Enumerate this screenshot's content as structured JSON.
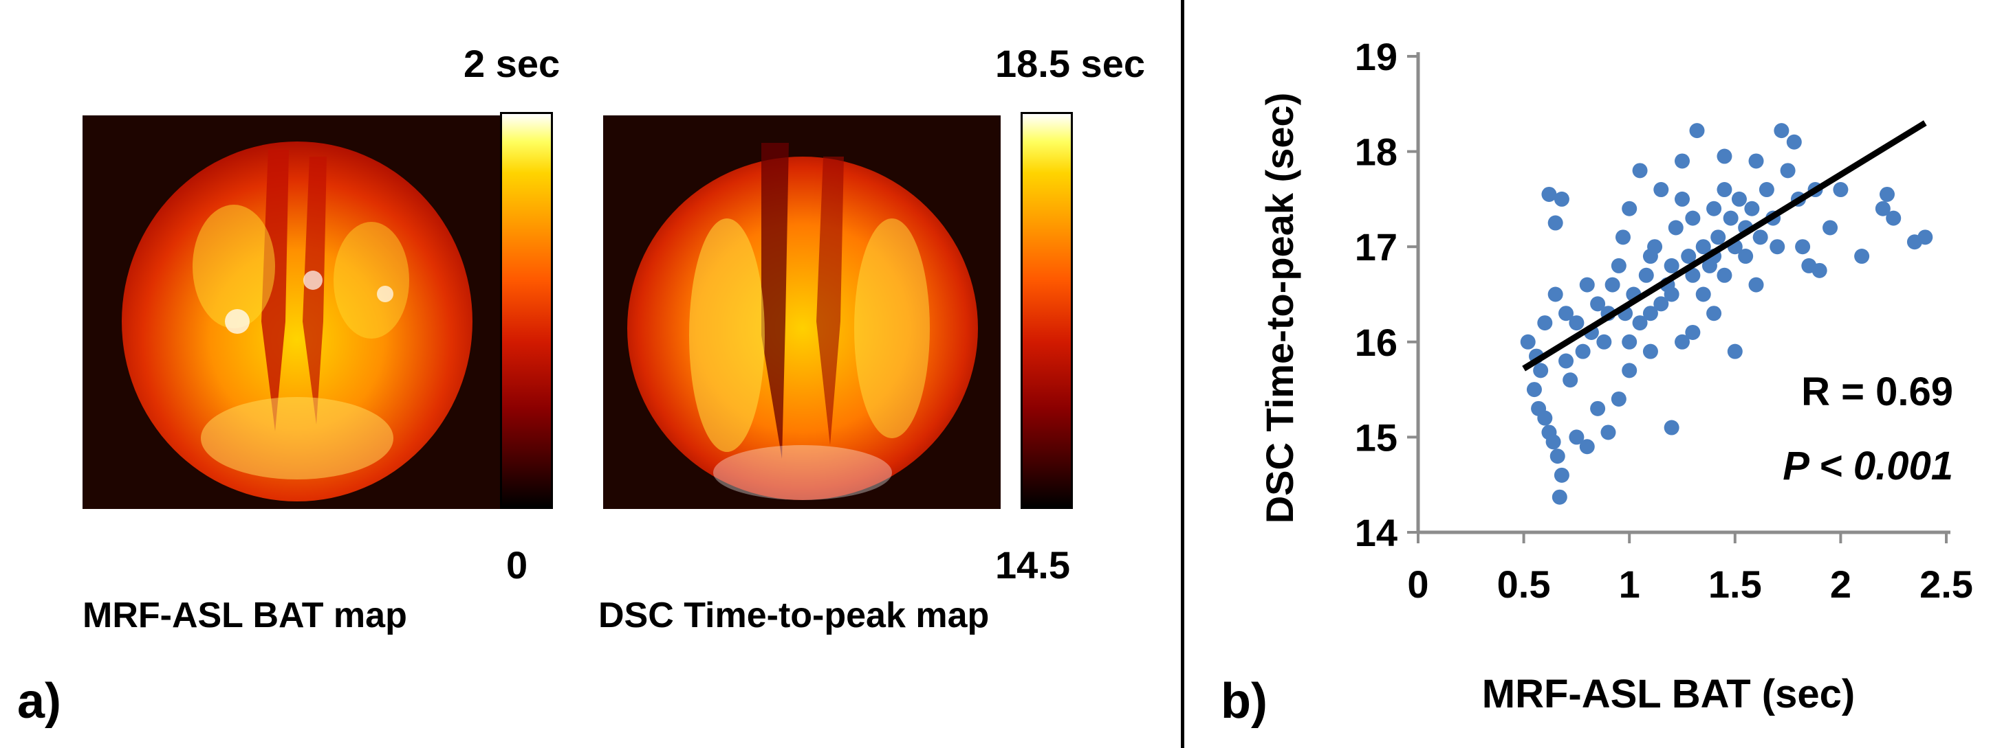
{
  "panel_a": {
    "label": "a)",
    "map1": {
      "caption": "MRF-ASL BAT map",
      "cbar_max": "2 sec",
      "cbar_min": "0"
    },
    "map2": {
      "caption": "DSC Time-to-peak map",
      "cbar_max": "18.5 sec",
      "cbar_min": "14.5"
    }
  },
  "panel_b": {
    "label": "b)",
    "stat_r": "R = 0.69",
    "stat_p": "P < 0.001"
  },
  "chart_data": {
    "type": "scatter",
    "title": "",
    "xlabel": "MRF-ASL BAT (sec)",
    "ylabel": "DSC Time-to-peak (sec)",
    "xlim": [
      0,
      2.5
    ],
    "ylim": [
      14,
      19
    ],
    "x_ticks": [
      "0",
      "0.5",
      "1",
      "1.5",
      "2",
      "2.5"
    ],
    "y_ticks": [
      "14",
      "15",
      "16",
      "17",
      "18",
      "19"
    ],
    "grid": false,
    "point_color": "#4a7fc1",
    "line_color": "#000000",
    "series": [
      {
        "points": [
          [
            0.62,
            17.55
          ],
          [
            0.68,
            17.5
          ],
          [
            0.65,
            17.25
          ],
          [
            0.52,
            16.0
          ],
          [
            0.56,
            15.85
          ],
          [
            0.58,
            15.7
          ],
          [
            0.55,
            15.5
          ],
          [
            0.57,
            15.3
          ],
          [
            0.6,
            15.2
          ],
          [
            0.62,
            15.05
          ],
          [
            0.64,
            14.95
          ],
          [
            0.66,
            14.8
          ],
          [
            0.68,
            14.6
          ],
          [
            0.67,
            14.37
          ],
          [
            0.75,
            15.0
          ],
          [
            0.8,
            14.9
          ],
          [
            0.9,
            15.05
          ],
          [
            0.72,
            15.6
          ],
          [
            0.78,
            15.9
          ],
          [
            0.82,
            16.1
          ],
          [
            0.85,
            16.4
          ],
          [
            0.88,
            16.0
          ],
          [
            0.92,
            16.6
          ],
          [
            0.95,
            16.8
          ],
          [
            0.97,
            17.1
          ],
          [
            1.0,
            17.4
          ],
          [
            0.98,
            16.3
          ],
          [
            1.02,
            16.5
          ],
          [
            1.05,
            16.2
          ],
          [
            1.08,
            16.7
          ],
          [
            1.1,
            16.9
          ],
          [
            1.12,
            17.0
          ],
          [
            1.15,
            16.4
          ],
          [
            1.18,
            16.6
          ],
          [
            1.2,
            16.8
          ],
          [
            1.22,
            17.2
          ],
          [
            1.25,
            17.5
          ],
          [
            1.28,
            16.9
          ],
          [
            1.3,
            17.3
          ],
          [
            1.32,
            18.22
          ],
          [
            1.35,
            17.0
          ],
          [
            1.38,
            16.8
          ],
          [
            1.4,
            17.4
          ],
          [
            1.42,
            17.1
          ],
          [
            1.45,
            17.6
          ],
          [
            1.48,
            17.3
          ],
          [
            1.5,
            17.0
          ],
          [
            1.52,
            17.5
          ],
          [
            1.55,
            17.2
          ],
          [
            1.58,
            17.4
          ],
          [
            1.6,
            17.9
          ],
          [
            1.62,
            17.1
          ],
          [
            1.65,
            17.6
          ],
          [
            1.68,
            17.3
          ],
          [
            1.72,
            18.22
          ],
          [
            1.75,
            17.8
          ],
          [
            1.78,
            18.1
          ],
          [
            1.8,
            17.5
          ],
          [
            1.82,
            17.0
          ],
          [
            1.85,
            16.8
          ],
          [
            1.88,
            17.6
          ],
          [
            1.9,
            16.75
          ],
          [
            1.95,
            17.2
          ],
          [
            2.0,
            17.6
          ],
          [
            2.1,
            16.9
          ],
          [
            2.2,
            17.4
          ],
          [
            2.22,
            17.55
          ],
          [
            2.25,
            17.3
          ],
          [
            2.35,
            17.05
          ],
          [
            2.4,
            17.1
          ],
          [
            1.2,
            15.1
          ],
          [
            1.1,
            15.9
          ],
          [
            1.0,
            15.7
          ],
          [
            0.95,
            15.4
          ],
          [
            1.3,
            16.1
          ],
          [
            1.4,
            16.3
          ],
          [
            1.5,
            15.9
          ],
          [
            0.85,
            15.3
          ],
          [
            0.7,
            15.8
          ],
          [
            0.75,
            16.2
          ],
          [
            1.25,
            16.0
          ],
          [
            1.35,
            16.5
          ],
          [
            1.45,
            16.7
          ],
          [
            1.55,
            16.9
          ],
          [
            1.6,
            16.6
          ],
          [
            1.7,
            17.0
          ],
          [
            1.15,
            17.6
          ],
          [
            1.05,
            17.8
          ],
          [
            1.25,
            17.9
          ],
          [
            1.45,
            17.95
          ],
          [
            0.6,
            16.2
          ],
          [
            0.65,
            16.5
          ],
          [
            0.7,
            16.3
          ],
          [
            0.8,
            16.6
          ],
          [
            0.9,
            16.3
          ],
          [
            1.0,
            16.0
          ],
          [
            1.1,
            16.3
          ],
          [
            1.2,
            16.5
          ],
          [
            1.3,
            16.7
          ],
          [
            1.4,
            16.9
          ]
        ]
      }
    ],
    "fit_line": {
      "x": [
        0.5,
        2.4
      ],
      "y": [
        15.72,
        18.3
      ]
    }
  }
}
